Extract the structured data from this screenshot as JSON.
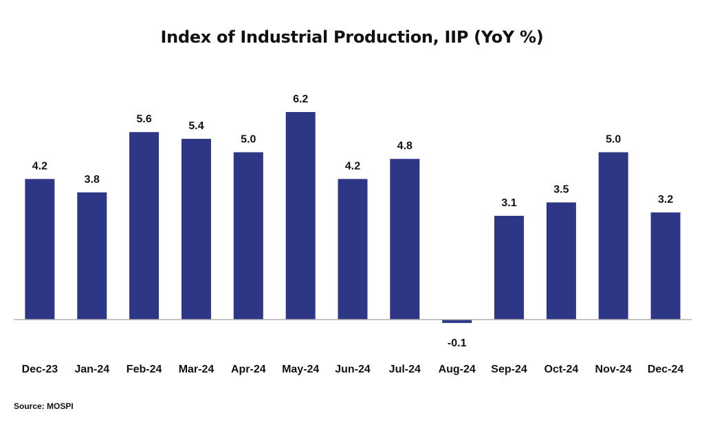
{
  "title": "Index of Industrial Production, IIP (YoY %)",
  "source": "Source: MOSPI",
  "colors": {
    "bar": "#2e3786",
    "baseline": "#b0b0b0",
    "text": "#111111"
  },
  "chart_data": {
    "type": "bar",
    "title": "Index of Industrial Production, IIP (YoY %)",
    "xlabel": "",
    "ylabel": "",
    "categories": [
      "Dec-23",
      "Jan-24",
      "Feb-24",
      "Mar-24",
      "Apr-24",
      "May-24",
      "Jun-24",
      "Jul-24",
      "Aug-24",
      "Sep-24",
      "Oct-24",
      "Nov-24",
      "Dec-24"
    ],
    "values": [
      4.2,
      3.8,
      5.6,
      5.4,
      5.0,
      6.2,
      4.2,
      4.8,
      -0.1,
      3.1,
      3.5,
      5.0,
      3.2
    ],
    "data_labels": [
      "4.2",
      "3.8",
      "5.6",
      "5.4",
      "5.0",
      "6.2",
      "4.2",
      "4.8",
      "-0.1",
      "3.1",
      "3.5",
      "5.0",
      "3.2"
    ],
    "ylim": [
      -0.5,
      6.2
    ],
    "grid": false,
    "legend": "none"
  }
}
